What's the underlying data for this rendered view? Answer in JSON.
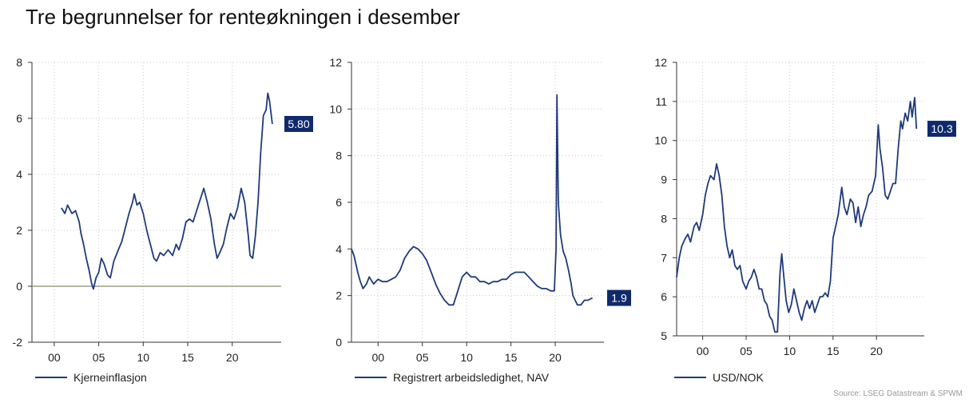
{
  "title": "Tre begrunnelser for renteøkningen i desember",
  "source": "Source: LSEG Datastream & SPWM",
  "colors": {
    "line": "#1f3a7a",
    "label_bg": "#0f2a6b",
    "grid": "#c8c8c8",
    "zero_line": "#8a8a70"
  },
  "chart_data": [
    {
      "type": "line",
      "series": [
        {
          "name": "Kjerneinflasjon"
        }
      ],
      "end_label": "5.80",
      "xlim": [
        1997.5,
        2025.5
      ],
      "ylim": [
        -2,
        8
      ],
      "x_ticks": [
        2000,
        2005,
        2010,
        2015,
        2020
      ],
      "x_tick_labels": [
        "00",
        "05",
        "10",
        "15",
        "20"
      ],
      "y_ticks": [
        -2,
        0,
        2,
        4,
        6,
        8
      ],
      "y_tick_labels": [
        "-2",
        "0",
        "2",
        "4",
        "6",
        "8"
      ],
      "zero_line": true,
      "points": [
        [
          2000.8,
          2.8
        ],
        [
          2001.2,
          2.6
        ],
        [
          2001.5,
          2.9
        ],
        [
          2002.0,
          2.6
        ],
        [
          2002.4,
          2.7
        ],
        [
          2002.8,
          2.3
        ],
        [
          2003.0,
          1.9
        ],
        [
          2003.3,
          1.5
        ],
        [
          2003.6,
          1.0
        ],
        [
          2003.9,
          0.6
        ],
        [
          2004.2,
          0.1
        ],
        [
          2004.4,
          -0.1
        ],
        [
          2004.7,
          0.3
        ],
        [
          2005.0,
          0.5
        ],
        [
          2005.3,
          1.0
        ],
        [
          2005.6,
          0.8
        ],
        [
          2006.0,
          0.4
        ],
        [
          2006.3,
          0.3
        ],
        [
          2006.7,
          0.9
        ],
        [
          2007.2,
          1.3
        ],
        [
          2007.6,
          1.6
        ],
        [
          2008.0,
          2.1
        ],
        [
          2008.4,
          2.6
        ],
        [
          2008.8,
          3.0
        ],
        [
          2009.0,
          3.3
        ],
        [
          2009.3,
          2.9
        ],
        [
          2009.6,
          3.0
        ],
        [
          2010.0,
          2.6
        ],
        [
          2010.4,
          2.0
        ],
        [
          2010.8,
          1.5
        ],
        [
          2011.2,
          1.0
        ],
        [
          2011.5,
          0.9
        ],
        [
          2011.9,
          1.2
        ],
        [
          2012.3,
          1.1
        ],
        [
          2012.8,
          1.3
        ],
        [
          2013.3,
          1.1
        ],
        [
          2013.7,
          1.5
        ],
        [
          2014.0,
          1.3
        ],
        [
          2014.4,
          1.7
        ],
        [
          2014.8,
          2.3
        ],
        [
          2015.2,
          2.4
        ],
        [
          2015.6,
          2.3
        ],
        [
          2016.0,
          2.7
        ],
        [
          2016.4,
          3.1
        ],
        [
          2016.8,
          3.5
        ],
        [
          2017.2,
          3.0
        ],
        [
          2017.6,
          2.4
        ],
        [
          2018.0,
          1.5
        ],
        [
          2018.3,
          1.0
        ],
        [
          2018.6,
          1.2
        ],
        [
          2019.0,
          1.5
        ],
        [
          2019.4,
          2.1
        ],
        [
          2019.8,
          2.6
        ],
        [
          2020.2,
          2.4
        ],
        [
          2020.6,
          2.8
        ],
        [
          2021.0,
          3.5
        ],
        [
          2021.4,
          3.0
        ],
        [
          2021.8,
          1.8
        ],
        [
          2022.0,
          1.1
        ],
        [
          2022.3,
          1.0
        ],
        [
          2022.6,
          1.8
        ],
        [
          2022.9,
          3.0
        ],
        [
          2023.2,
          4.8
        ],
        [
          2023.5,
          6.1
        ],
        [
          2023.8,
          6.3
        ],
        [
          2024.0,
          6.9
        ],
        [
          2024.2,
          6.6
        ],
        [
          2024.5,
          5.8
        ]
      ]
    },
    {
      "type": "line",
      "series": [
        {
          "name": "Registrert arbeidsledighet, NAV"
        }
      ],
      "end_label": "1.9",
      "xlim": [
        1997,
        2025.5
      ],
      "ylim": [
        0,
        12
      ],
      "x_ticks": [
        2000,
        2005,
        2010,
        2015,
        2020
      ],
      "x_tick_labels": [
        "00",
        "05",
        "10",
        "15",
        "20"
      ],
      "y_ticks": [
        0,
        2,
        4,
        6,
        8,
        10,
        12
      ],
      "y_tick_labels": [
        "0",
        "2",
        "4",
        "6",
        "8",
        "10",
        "12"
      ],
      "zero_line": false,
      "points": [
        [
          1997.0,
          4.0
        ],
        [
          1997.3,
          3.7
        ],
        [
          1997.7,
          3.0
        ],
        [
          1998.0,
          2.6
        ],
        [
          1998.3,
          2.3
        ],
        [
          1998.7,
          2.5
        ],
        [
          1999.0,
          2.8
        ],
        [
          1999.5,
          2.5
        ],
        [
          2000.0,
          2.7
        ],
        [
          2000.5,
          2.6
        ],
        [
          2001.0,
          2.6
        ],
        [
          2001.5,
          2.7
        ],
        [
          2002.0,
          2.8
        ],
        [
          2002.5,
          3.1
        ],
        [
          2003.0,
          3.6
        ],
        [
          2003.5,
          3.9
        ],
        [
          2004.0,
          4.1
        ],
        [
          2004.5,
          4.0
        ],
        [
          2005.0,
          3.8
        ],
        [
          2005.5,
          3.5
        ],
        [
          2006.0,
          3.0
        ],
        [
          2006.5,
          2.5
        ],
        [
          2007.0,
          2.1
        ],
        [
          2007.5,
          1.8
        ],
        [
          2008.0,
          1.6
        ],
        [
          2008.5,
          1.6
        ],
        [
          2009.0,
          2.2
        ],
        [
          2009.5,
          2.8
        ],
        [
          2010.0,
          3.0
        ],
        [
          2010.5,
          2.8
        ],
        [
          2011.0,
          2.8
        ],
        [
          2011.5,
          2.6
        ],
        [
          2012.0,
          2.6
        ],
        [
          2012.5,
          2.5
        ],
        [
          2013.0,
          2.6
        ],
        [
          2013.5,
          2.6
        ],
        [
          2014.0,
          2.7
        ],
        [
          2014.5,
          2.7
        ],
        [
          2015.0,
          2.9
        ],
        [
          2015.5,
          3.0
        ],
        [
          2016.0,
          3.0
        ],
        [
          2016.5,
          3.0
        ],
        [
          2017.0,
          2.8
        ],
        [
          2017.5,
          2.6
        ],
        [
          2018.0,
          2.4
        ],
        [
          2018.5,
          2.3
        ],
        [
          2019.0,
          2.3
        ],
        [
          2019.5,
          2.2
        ],
        [
          2019.9,
          2.2
        ],
        [
          2020.1,
          4.0
        ],
        [
          2020.2,
          10.6
        ],
        [
          2020.35,
          6.0
        ],
        [
          2020.6,
          4.6
        ],
        [
          2020.9,
          3.9
        ],
        [
          2021.2,
          3.6
        ],
        [
          2021.5,
          3.1
        ],
        [
          2021.8,
          2.5
        ],
        [
          2022.0,
          2.0
        ],
        [
          2022.5,
          1.6
        ],
        [
          2022.9,
          1.6
        ],
        [
          2023.3,
          1.8
        ],
        [
          2023.7,
          1.8
        ],
        [
          2024.2,
          1.9
        ]
      ]
    },
    {
      "type": "line",
      "series": [
        {
          "name": "USD/NOK"
        }
      ],
      "end_label": "10.3",
      "xlim": [
        1997,
        2025.5
      ],
      "ylim": [
        5,
        12
      ],
      "x_ticks": [
        2000,
        2005,
        2010,
        2015,
        2020
      ],
      "x_tick_labels": [
        "00",
        "05",
        "10",
        "15",
        "20"
      ],
      "y_ticks": [
        5,
        6,
        7,
        8,
        9,
        10,
        11,
        12
      ],
      "y_tick_labels": [
        "5",
        "6",
        "7",
        "8",
        "9",
        "10",
        "11",
        "12"
      ],
      "zero_line": false,
      "points": [
        [
          1997.0,
          6.5
        ],
        [
          1997.3,
          7.0
        ],
        [
          1997.6,
          7.3
        ],
        [
          1998.0,
          7.5
        ],
        [
          1998.3,
          7.6
        ],
        [
          1998.6,
          7.4
        ],
        [
          1999.0,
          7.8
        ],
        [
          1999.3,
          7.9
        ],
        [
          1999.6,
          7.7
        ],
        [
          2000.0,
          8.1
        ],
        [
          2000.3,
          8.6
        ],
        [
          2000.6,
          8.9
        ],
        [
          2000.9,
          9.1
        ],
        [
          2001.3,
          9.0
        ],
        [
          2001.6,
          9.4
        ],
        [
          2001.9,
          9.1
        ],
        [
          2002.2,
          8.6
        ],
        [
          2002.5,
          7.8
        ],
        [
          2002.8,
          7.3
        ],
        [
          2003.1,
          7.0
        ],
        [
          2003.4,
          7.2
        ],
        [
          2003.7,
          6.8
        ],
        [
          2004.0,
          6.7
        ],
        [
          2004.3,
          6.8
        ],
        [
          2004.6,
          6.4
        ],
        [
          2005.0,
          6.2
        ],
        [
          2005.3,
          6.4
        ],
        [
          2005.6,
          6.5
        ],
        [
          2005.9,
          6.7
        ],
        [
          2006.2,
          6.5
        ],
        [
          2006.5,
          6.2
        ],
        [
          2006.8,
          6.2
        ],
        [
          2007.1,
          5.9
        ],
        [
          2007.4,
          5.8
        ],
        [
          2007.7,
          5.5
        ],
        [
          2008.0,
          5.4
        ],
        [
          2008.3,
          5.1
        ],
        [
          2008.6,
          5.1
        ],
        [
          2008.9,
          6.6
        ],
        [
          2009.1,
          7.1
        ],
        [
          2009.3,
          6.6
        ],
        [
          2009.6,
          5.9
        ],
        [
          2009.9,
          5.6
        ],
        [
          2010.2,
          5.8
        ],
        [
          2010.5,
          6.2
        ],
        [
          2010.8,
          5.9
        ],
        [
          2011.1,
          5.6
        ],
        [
          2011.4,
          5.4
        ],
        [
          2011.7,
          5.7
        ],
        [
          2012.0,
          5.9
        ],
        [
          2012.3,
          5.7
        ],
        [
          2012.6,
          5.9
        ],
        [
          2012.9,
          5.6
        ],
        [
          2013.2,
          5.8
        ],
        [
          2013.5,
          6.0
        ],
        [
          2013.8,
          6.0
        ],
        [
          2014.1,
          6.1
        ],
        [
          2014.4,
          6.0
        ],
        [
          2014.7,
          6.4
        ],
        [
          2015.0,
          7.5
        ],
        [
          2015.3,
          7.8
        ],
        [
          2015.6,
          8.1
        ],
        [
          2016.0,
          8.8
        ],
        [
          2016.3,
          8.3
        ],
        [
          2016.6,
          8.1
        ],
        [
          2017.0,
          8.5
        ],
        [
          2017.3,
          8.4
        ],
        [
          2017.6,
          7.9
        ],
        [
          2017.9,
          8.3
        ],
        [
          2018.2,
          7.8
        ],
        [
          2018.5,
          8.1
        ],
        [
          2018.8,
          8.3
        ],
        [
          2019.1,
          8.6
        ],
        [
          2019.5,
          8.7
        ],
        [
          2019.9,
          9.1
        ],
        [
          2020.2,
          10.4
        ],
        [
          2020.4,
          9.8
        ],
        [
          2020.7,
          9.3
        ],
        [
          2021.0,
          8.6
        ],
        [
          2021.3,
          8.5
        ],
        [
          2021.6,
          8.7
        ],
        [
          2021.9,
          8.9
        ],
        [
          2022.2,
          8.9
        ],
        [
          2022.5,
          9.8
        ],
        [
          2022.8,
          10.5
        ],
        [
          2023.0,
          10.3
        ],
        [
          2023.3,
          10.7
        ],
        [
          2023.6,
          10.5
        ],
        [
          2023.9,
          11.0
        ],
        [
          2024.1,
          10.6
        ],
        [
          2024.4,
          11.1
        ],
        [
          2024.6,
          10.3
        ]
      ]
    }
  ]
}
